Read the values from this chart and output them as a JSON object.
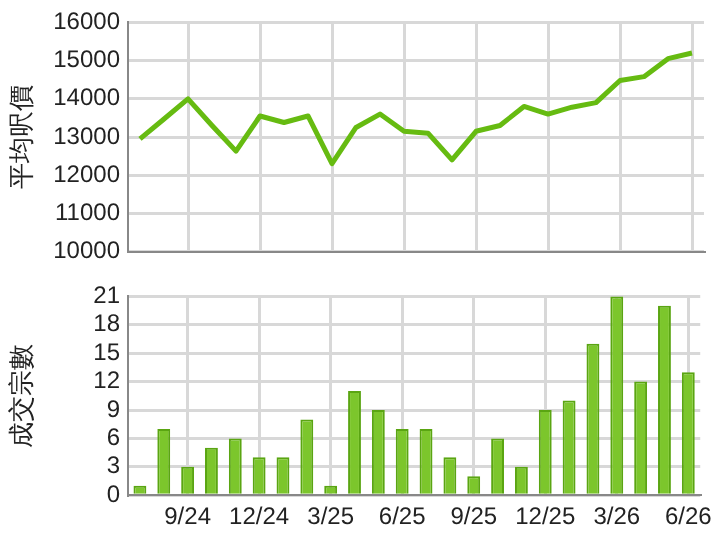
{
  "chart_data": [
    {
      "type": "line",
      "ylabel": "平均呎價",
      "categories": [
        null,
        null,
        null,
        null,
        null,
        null,
        null,
        null,
        null,
        null,
        null,
        null,
        null,
        null,
        null,
        null,
        null,
        null,
        null,
        null,
        null,
        null,
        null,
        null
      ],
      "series": [
        {
          "color": "#66bb11",
          "values": [
            12950,
            13470,
            14000,
            13300,
            12630,
            13550,
            13380,
            13550,
            12300,
            13250,
            13600,
            13150,
            13100,
            12400,
            13150,
            13300,
            13800,
            13600,
            13780,
            13900,
            14480,
            14580,
            15050,
            15200
          ]
        }
      ],
      "ylim": [
        10000,
        16000
      ],
      "yticks": [
        10000,
        11000,
        12000,
        13000,
        14000,
        15000,
        16000
      ],
      "grid": true,
      "marker": "none",
      "tick_labels": "y"
    },
    {
      "type": "bar",
      "ylabel": "成交宗數",
      "categories": [
        null,
        null,
        "9/24",
        null,
        null,
        "12/24",
        null,
        null,
        "3/25",
        null,
        null,
        "6/25",
        null,
        null,
        "9/25",
        null,
        null,
        "12/25",
        null,
        null,
        "3/26",
        null,
        null,
        "6/26"
      ],
      "series": [
        {
          "color": "#7cc62c",
          "values": [
            1,
            7,
            3,
            5,
            6,
            4,
            4,
            8,
            1,
            11,
            9,
            7,
            7,
            4,
            2,
            6,
            3,
            9,
            10,
            16,
            21,
            12,
            20,
            13
          ]
        }
      ],
      "ylim": [
        0,
        21
      ],
      "yticks": [
        0,
        3,
        6,
        9,
        12,
        15,
        18,
        21
      ],
      "grid": true
    }
  ]
}
